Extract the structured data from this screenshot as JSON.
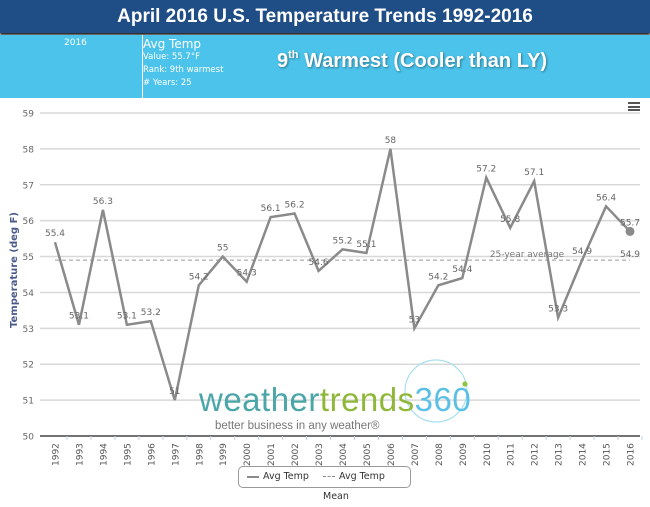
{
  "header": {
    "title": "April 2016 U.S. Temperature Trends 1992-2016"
  },
  "info": {
    "year": "2016",
    "metric": "Avg Temp",
    "value_line": "Value: 55.7°F",
    "rank_line": "Rank: 9th warmest",
    "years_line": "# Years: 25",
    "headline_num": "9",
    "headline_sup": "th",
    "headline_rest": " Warmest (Cooler than LY)"
  },
  "logo": {
    "part1": "weather",
    "part2": "trends",
    "part3": "360",
    "tagline": "better business in any weather®"
  },
  "colors": {
    "title_bg": "#1f4d86",
    "info_bg": "#4cc3ea",
    "line": "#8a8a8a",
    "grid": "#d8d8d8",
    "axis_label": "#4a5a8a"
  },
  "chart_data": {
    "type": "line",
    "title": "April 2016 U.S. Temperature Trends 1992-2016",
    "xlabel": "",
    "ylabel": "Temperature (deg F)",
    "ylim": [
      50,
      59
    ],
    "yticks": [
      "50",
      "51",
      "52",
      "53",
      "54",
      "55",
      "56",
      "57",
      "58",
      "59"
    ],
    "grid": true,
    "categories": [
      "1992",
      "1993",
      "1994",
      "1995",
      "1996",
      "1997",
      "1998",
      "1999",
      "2000",
      "2001",
      "2002",
      "2003",
      "2004",
      "2005",
      "2006",
      "2007",
      "2008",
      "2009",
      "2010",
      "2011",
      "2012",
      "2013",
      "2014",
      "2015",
      "2016"
    ],
    "series": [
      {
        "name": "Avg Temp",
        "values": [
          55.4,
          53.1,
          56.3,
          53.1,
          53.2,
          51,
          54.2,
          55,
          54.3,
          56.1,
          56.2,
          54.6,
          55.2,
          55.1,
          58,
          53,
          54.2,
          54.4,
          57.2,
          55.8,
          57.1,
          53.3,
          54.9,
          56.4,
          55.7
        ],
        "labels": [
          "55.4",
          "53.1",
          "56.3",
          "53.1",
          "53.2",
          "51",
          "54.2",
          "55",
          "54.3",
          "56.1",
          "56.2",
          "54.6",
          "55.2",
          "55.1",
          "58",
          "53",
          "54.2",
          "54.4",
          "57.2",
          "55.8",
          "57.1",
          "53.3",
          "54.9",
          "56.4",
          "55.7"
        ]
      },
      {
        "name": "Avg Temp Mean",
        "value": 54.9,
        "label": "54.9",
        "annotation": "25-year average"
      }
    ],
    "legend": [
      "Avg Temp",
      "Avg Temp Mean"
    ],
    "legend_position": "bottom"
  }
}
